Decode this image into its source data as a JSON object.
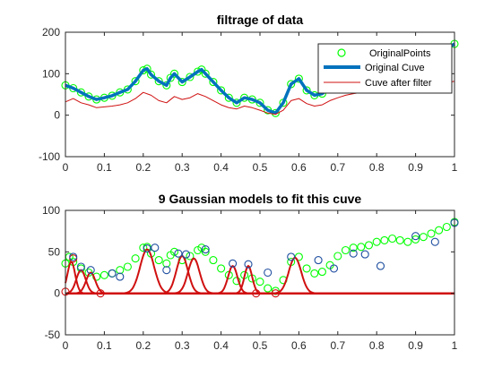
{
  "chart_data": [
    {
      "type": "line",
      "title": "filtrage of data",
      "xlabel": "",
      "ylabel": "",
      "xlim": [
        0,
        1
      ],
      "ylim": [
        -100,
        200
      ],
      "xticks": [
        0,
        0.1,
        0.2,
        0.3,
        0.4,
        0.5,
        0.6,
        0.7,
        0.8,
        0.9,
        1
      ],
      "yticks": [
        -100,
        0,
        100,
        200
      ],
      "xtick_labels": [
        "0",
        "0.1",
        "0.2",
        "0.3",
        "0.4",
        "0.5",
        "0.6",
        "0.7",
        "0.8",
        "0.9",
        "1"
      ],
      "ytick_labels": [
        "-100",
        "0",
        "100",
        "200"
      ],
      "grid": false,
      "legend_position": "top-right",
      "series": [
        {
          "name": "OriginalPoints",
          "kind": "markers",
          "color": "#00ff00",
          "x": [
            0,
            0.02,
            0.04,
            0.06,
            0.08,
            0.1,
            0.12,
            0.14,
            0.16,
            0.18,
            0.2,
            0.21,
            0.22,
            0.24,
            0.26,
            0.27,
            0.28,
            0.3,
            0.32,
            0.34,
            0.35,
            0.36,
            0.38,
            0.4,
            0.42,
            0.44,
            0.46,
            0.48,
            0.5,
            0.52,
            0.54,
            0.56,
            0.58,
            0.6,
            0.62,
            0.64,
            0.66,
            0.68,
            0.7,
            0.72,
            0.74,
            0.76,
            0.78,
            0.8,
            0.82,
            0.84,
            0.86,
            0.88,
            0.9,
            0.92,
            0.94,
            0.96,
            0.98,
            1
          ],
          "y": [
            72,
            65,
            55,
            45,
            38,
            42,
            47,
            55,
            62,
            82,
            108,
            112,
            98,
            82,
            72,
            90,
            100,
            80,
            92,
            105,
            110,
            100,
            80,
            60,
            42,
            30,
            42,
            38,
            30,
            12,
            5,
            30,
            75,
            88,
            60,
            48,
            52,
            65,
            92,
            105,
            110,
            112,
            118,
            125,
            130,
            132,
            130,
            128,
            125,
            132,
            140,
            150,
            160,
            172
          ]
        },
        {
          "name": "Original Cuve",
          "kind": "line",
          "color": "#0072bd",
          "x": [
            0,
            0.02,
            0.04,
            0.06,
            0.08,
            0.1,
            0.12,
            0.14,
            0.16,
            0.18,
            0.2,
            0.21,
            0.22,
            0.24,
            0.26,
            0.27,
            0.28,
            0.3,
            0.32,
            0.34,
            0.35,
            0.36,
            0.38,
            0.4,
            0.42,
            0.44,
            0.46,
            0.48,
            0.5,
            0.52,
            0.54,
            0.56,
            0.58,
            0.6,
            0.62,
            0.64,
            0.66,
            0.68,
            0.7,
            0.72,
            0.74,
            0.76,
            0.78,
            0.8,
            0.82,
            0.84,
            0.86,
            0.88,
            0.9,
            0.92,
            0.94,
            0.96,
            0.98,
            1
          ],
          "y": [
            72,
            65,
            55,
            45,
            38,
            42,
            47,
            55,
            62,
            82,
            108,
            112,
            98,
            82,
            72,
            90,
            100,
            80,
            92,
            105,
            110,
            100,
            80,
            60,
            42,
            30,
            42,
            38,
            30,
            12,
            5,
            30,
            75,
            88,
            60,
            48,
            52,
            65,
            92,
            105,
            110,
            112,
            118,
            125,
            130,
            132,
            130,
            128,
            125,
            132,
            140,
            150,
            160,
            172
          ]
        },
        {
          "name": "Cuve after filter",
          "kind": "line",
          "color": "#d01010",
          "x": [
            0,
            0.02,
            0.04,
            0.06,
            0.08,
            0.1,
            0.12,
            0.14,
            0.16,
            0.18,
            0.2,
            0.22,
            0.24,
            0.26,
            0.28,
            0.3,
            0.32,
            0.34,
            0.36,
            0.38,
            0.4,
            0.42,
            0.44,
            0.46,
            0.48,
            0.5,
            0.52,
            0.54,
            0.56,
            0.58,
            0.6,
            0.62,
            0.64,
            0.66,
            0.68,
            0.7,
            0.72,
            0.74,
            0.76,
            0.78,
            0.8,
            0.82,
            0.84,
            0.86,
            0.88,
            0.9,
            0.92,
            0.94,
            0.96,
            0.98,
            1
          ],
          "y": [
            32,
            40,
            30,
            25,
            18,
            20,
            22,
            25,
            30,
            40,
            55,
            48,
            35,
            30,
            45,
            38,
            42,
            52,
            45,
            35,
            25,
            18,
            15,
            22,
            18,
            12,
            5,
            2,
            12,
            35,
            40,
            28,
            22,
            25,
            35,
            42,
            48,
            52,
            55,
            55,
            58,
            60,
            62,
            62,
            60,
            58,
            62,
            68,
            72,
            78,
            82
          ]
        }
      ]
    },
    {
      "type": "line",
      "title": "9 Gaussian models to fit this cuve",
      "xlabel": "",
      "ylabel": "",
      "xlim": [
        0,
        1
      ],
      "ylim": [
        -50,
        100
      ],
      "xticks": [
        0,
        0.1,
        0.2,
        0.3,
        0.4,
        0.5,
        0.6,
        0.7,
        0.8,
        0.9,
        1
      ],
      "yticks": [
        -50,
        0,
        50,
        100
      ],
      "xtick_labels": [
        "0",
        "0.1",
        "0.2",
        "0.3",
        "0.4",
        "0.5",
        "0.6",
        "0.7",
        "0.8",
        "0.9",
        "1"
      ],
      "ytick_labels": [
        "-50",
        "0",
        "50",
        "100"
      ],
      "grid": false,
      "series": [
        {
          "kind": "markers",
          "color": "#00ff00",
          "x": [
            0,
            0.01,
            0.02,
            0.04,
            0.06,
            0.08,
            0.1,
            0.12,
            0.14,
            0.16,
            0.18,
            0.2,
            0.21,
            0.22,
            0.24,
            0.26,
            0.27,
            0.28,
            0.3,
            0.32,
            0.34,
            0.35,
            0.36,
            0.38,
            0.4,
            0.42,
            0.44,
            0.46,
            0.48,
            0.5,
            0.52,
            0.54,
            0.56,
            0.58,
            0.6,
            0.62,
            0.64,
            0.66,
            0.68,
            0.7,
            0.72,
            0.74,
            0.76,
            0.78,
            0.8,
            0.82,
            0.84,
            0.86,
            0.88,
            0.9,
            0.92,
            0.94,
            0.96,
            0.98,
            1
          ],
          "y": [
            36,
            44,
            38,
            30,
            25,
            20,
            22,
            24,
            28,
            32,
            42,
            55,
            56,
            48,
            40,
            36,
            46,
            50,
            40,
            45,
            52,
            55,
            50,
            40,
            30,
            22,
            15,
            22,
            18,
            14,
            6,
            3,
            16,
            38,
            44,
            30,
            24,
            26,
            34,
            45,
            52,
            55,
            56,
            58,
            62,
            64,
            66,
            64,
            62,
            65,
            68,
            72,
            76,
            80,
            86
          ]
        },
        {
          "kind": "line",
          "color": "#d01010",
          "components": [
            {
              "mu": 0.015,
              "sigma": 0.01,
              "amp": 38
            },
            {
              "mu": 0.04,
              "sigma": 0.012,
              "amp": 28
            },
            {
              "mu": 0.065,
              "sigma": 0.012,
              "amp": 25
            },
            {
              "mu": 0.21,
              "sigma": 0.018,
              "amp": 53
            },
            {
              "mu": 0.3,
              "sigma": 0.015,
              "amp": 45
            },
            {
              "mu": 0.33,
              "sigma": 0.015,
              "amp": 42
            },
            {
              "mu": 0.43,
              "sigma": 0.012,
              "amp": 33
            },
            {
              "mu": 0.47,
              "sigma": 0.01,
              "amp": 33
            },
            {
              "mu": 0.59,
              "sigma": 0.016,
              "amp": 43
            }
          ]
        },
        {
          "kind": "circles",
          "color": "#d01010",
          "x": [
            0,
            0.02,
            0.09,
            0.49,
            0.54
          ],
          "y": [
            2,
            42,
            0,
            0,
            0
          ]
        },
        {
          "kind": "circles",
          "color": "#1f4fa0",
          "x": [
            0.02,
            0.04,
            0.065,
            0.12,
            0.14,
            0.21,
            0.23,
            0.26,
            0.29,
            0.31,
            0.36,
            0.43,
            0.47,
            0.52,
            0.58,
            0.65,
            0.69,
            0.74,
            0.77,
            0.81,
            0.9,
            0.95,
            1
          ],
          "y": [
            44,
            32,
            28,
            24,
            20,
            54,
            55,
            28,
            48,
            47,
            53,
            36,
            35,
            25,
            44,
            40,
            30,
            48,
            47,
            33,
            69,
            62,
            85
          ]
        }
      ]
    }
  ]
}
